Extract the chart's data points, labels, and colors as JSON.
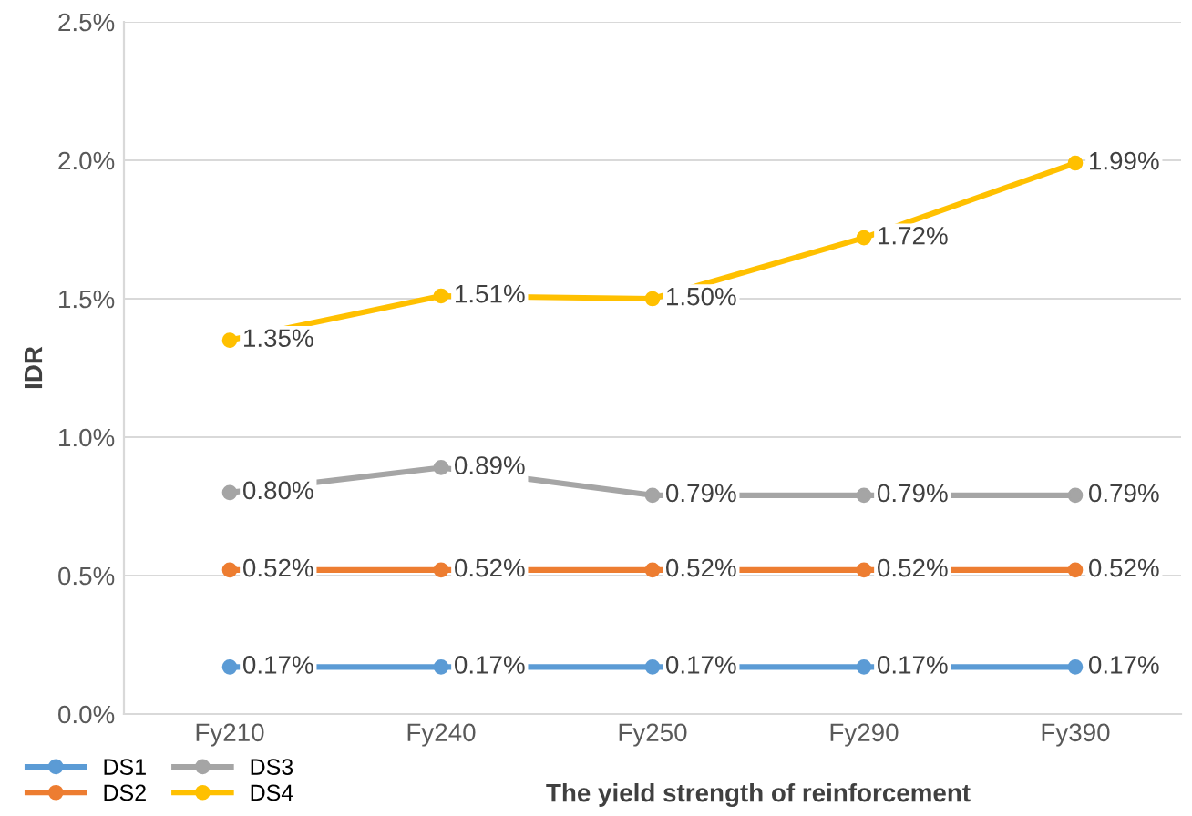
{
  "chart_data": {
    "type": "line",
    "xlabel": "The yield strength of reinforcement",
    "ylabel": "IDR",
    "categories": [
      "Fy210",
      "Fy240",
      "Fy250",
      "Fy290",
      "Fy390"
    ],
    "ylim": [
      0,
      2.5
    ],
    "yticks": [
      {
        "value": 0,
        "label": "0.0%"
      },
      {
        "value": 0.5,
        "label": "0.5%"
      },
      {
        "value": 1.0,
        "label": "1.0%"
      },
      {
        "value": 1.5,
        "label": "1.5%"
      },
      {
        "value": 2.0,
        "label": "2.0%"
      },
      {
        "value": 2.5,
        "label": "2.5%"
      }
    ],
    "grid": "y",
    "legend": "bottom left",
    "marker": "circle",
    "line_style": "solid",
    "series": [
      {
        "name": "DS1",
        "color": "#5b9bd5",
        "values": [
          0.17,
          0.17,
          0.17,
          0.17,
          0.17
        ],
        "value_labels": [
          "0.17%",
          "0.17%",
          "0.17%",
          "0.17%",
          "0.17%"
        ]
      },
      {
        "name": "DS2",
        "color": "#ed7d31",
        "values": [
          0.52,
          0.52,
          0.52,
          0.52,
          0.52
        ],
        "value_labels": [
          "0.52%",
          "0.52%",
          "0.52%",
          "0.52%",
          "0.52%"
        ]
      },
      {
        "name": "DS3",
        "color": "#a5a5a5",
        "values": [
          0.8,
          0.89,
          0.79,
          0.79,
          0.79
        ],
        "value_labels": [
          "0.80%",
          "0.89%",
          "0.79%",
          "0.79%",
          "0.79%"
        ]
      },
      {
        "name": "DS4",
        "color": "#ffc000",
        "values": [
          1.35,
          1.51,
          1.5,
          1.72,
          1.99
        ],
        "value_labels": [
          "1.35%",
          "1.51%",
          "1.50%",
          "1.72%",
          "1.99%"
        ]
      }
    ]
  }
}
